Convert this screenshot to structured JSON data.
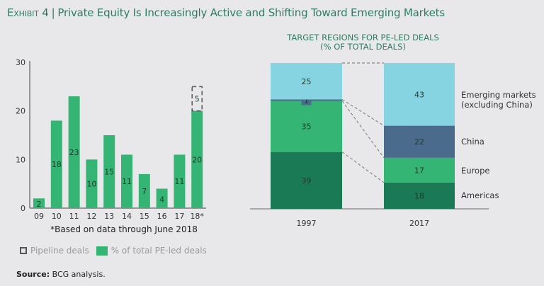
{
  "header": {
    "exhibit": "Exhibit 4",
    "separator": "|",
    "title": "Private Equity Is Increasingly Active and Shifting Toward Emerging Markets"
  },
  "chart_data": [
    {
      "type": "bar",
      "title": "",
      "xlabel": "",
      "ylabel": "",
      "ylim": [
        0,
        30
      ],
      "yticks": [
        "0",
        "10",
        "20",
        "30"
      ],
      "categories": [
        "09",
        "10",
        "11",
        "12",
        "13",
        "14",
        "15",
        "16",
        "17",
        "18*"
      ],
      "series": [
        {
          "name": "% of total PE-led deals",
          "color": "#35b574",
          "values": [
            2,
            18,
            23,
            10,
            15,
            11,
            7,
            4,
            11,
            20
          ]
        },
        {
          "name": "Pipeline deals",
          "style": "dashed-outline",
          "values": [
            null,
            null,
            null,
            null,
            null,
            null,
            null,
            null,
            null,
            5
          ]
        }
      ],
      "grid": false,
      "footnote": "*Based on data through June 2018",
      "legend": [
        "Pipeline deals",
        "% of total PE-led deals"
      ],
      "legend_position": "bottom"
    },
    {
      "type": "bar",
      "stacked": true,
      "title": "TARGET REGIONS FOR PE-LED DEALS",
      "subtitle": "(% OF TOTAL DEALS)",
      "categories": [
        "1997",
        "2017"
      ],
      "ylim": [
        0,
        100
      ],
      "series": [
        {
          "name": "Americas",
          "color": "#1a7a56",
          "text_color": "#e6f2ec",
          "values": [
            39,
            18
          ]
        },
        {
          "name": "Europe",
          "color": "#35b574",
          "text_color": "#1f3a2c",
          "values": [
            35,
            17
          ]
        },
        {
          "name": "China",
          "color": "#4a6b8c",
          "text_color": "#ffffff",
          "values": [
            1,
            22
          ]
        },
        {
          "name": "Emerging markets\n(excluding China)",
          "color": "#86d3e1",
          "text_color": "#1f3a2c",
          "values": [
            25,
            43
          ]
        }
      ],
      "legend_position": "right",
      "connectors": "dashed"
    }
  ],
  "right_labels": [
    {
      "line1": "Emerging markets",
      "line2": "(excluding China)"
    },
    {
      "line1": "China"
    },
    {
      "line1": "Europe"
    },
    {
      "line1": "Americas"
    }
  ],
  "source": {
    "label": "Source:",
    "text": " BCG analysis."
  }
}
